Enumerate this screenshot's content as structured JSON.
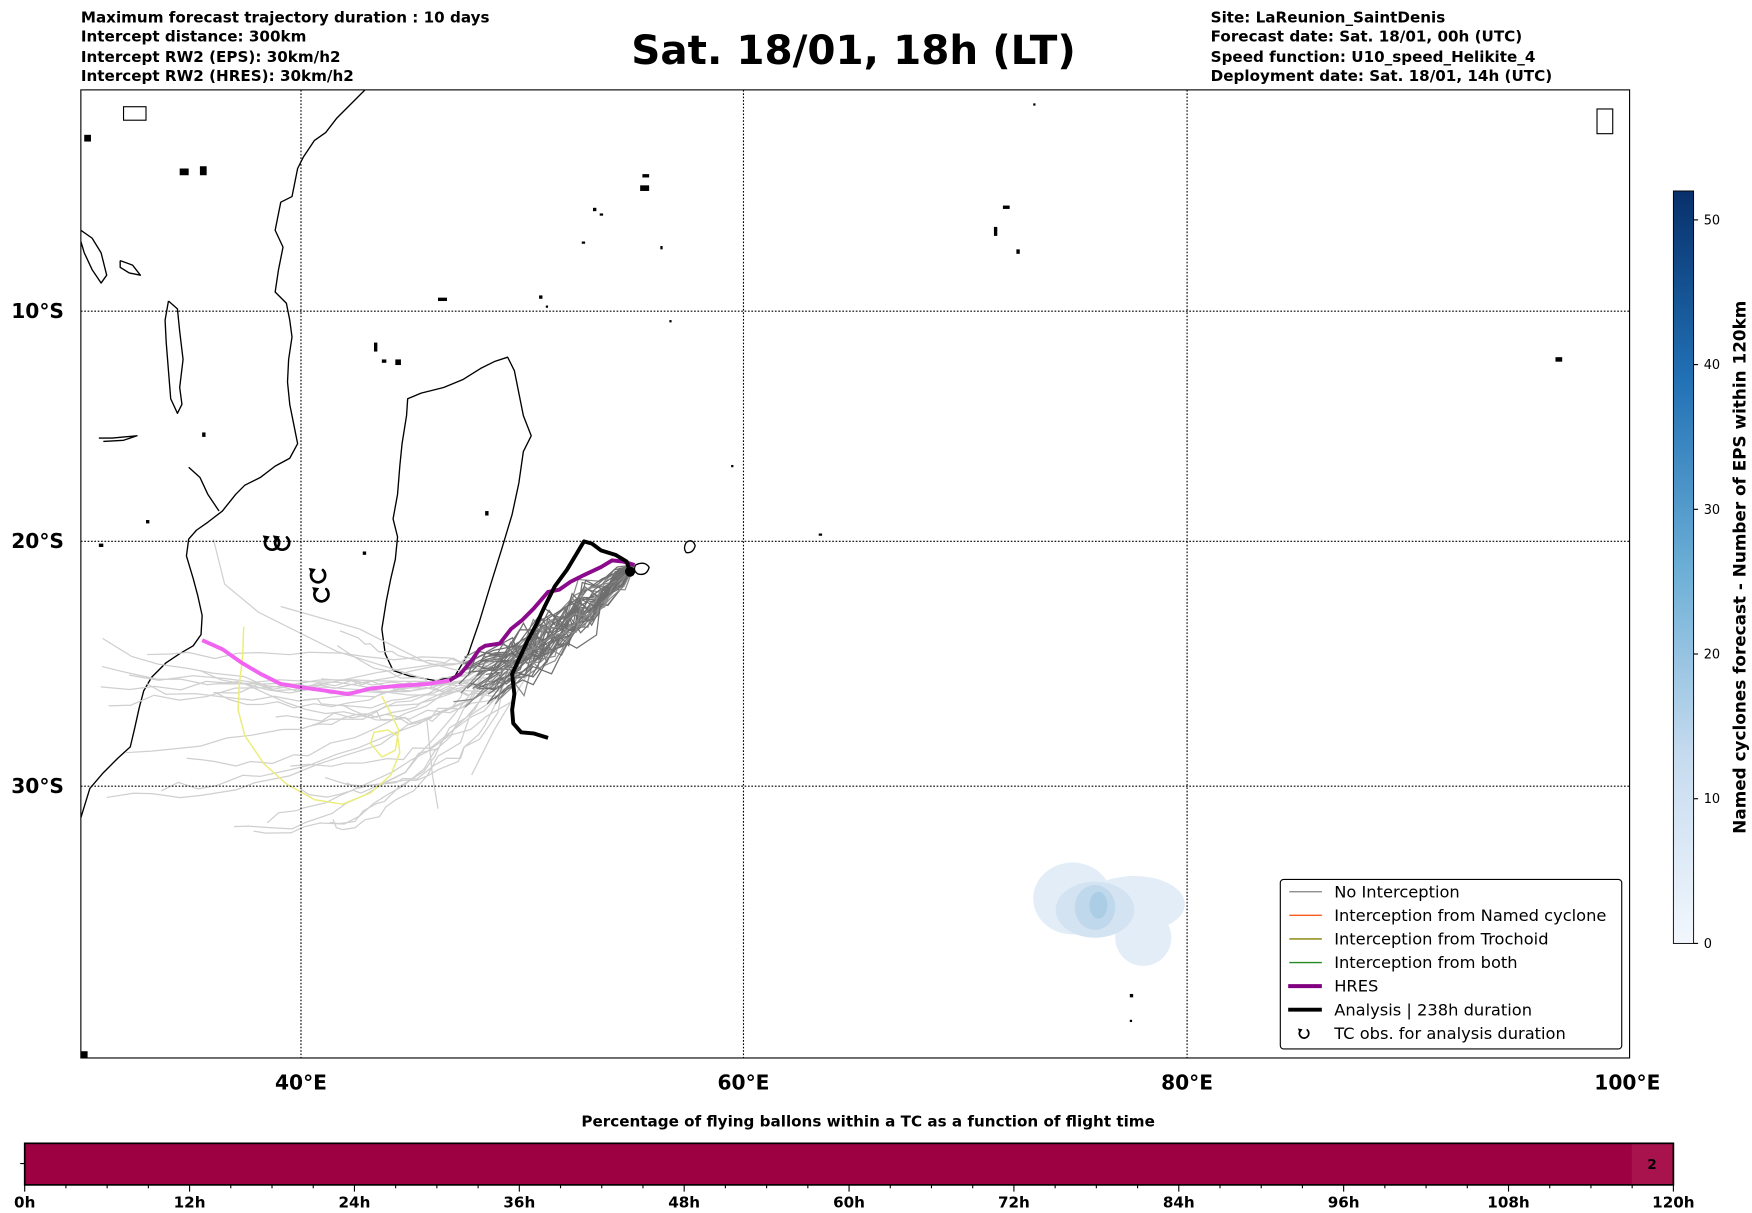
{
  "header": {
    "left": [
      "Maximum forecast trajectory duration : 10 days",
      "Intercept distance: 300km",
      "Intercept RW2 (EPS):  30km/h2",
      "Intercept RW2 (HRES): 30km/h2"
    ],
    "title": "Sat. 18/01, 18h (LT)",
    "right": [
      "Site: LaReunion_SaintDenis",
      "Forecast date: Sat. 18/01, 00h (UTC)",
      "Speed function: U10_speed_Helikite_4",
      "Deployment date: Sat. 18/01, 14h (UTC)"
    ]
  },
  "map": {
    "lat_labels": [
      "10°S",
      "20°S",
      "30°S"
    ],
    "lon_labels": [
      "40°E",
      "60°E",
      "80°E",
      "100°E"
    ]
  },
  "colorbar": {
    "label": "Named cyclones forecast - Number of EPS within 120km",
    "ticks": [
      "0",
      "10",
      "20",
      "30",
      "40",
      "50"
    ],
    "range": [
      0,
      52
    ]
  },
  "legend": {
    "items": [
      {
        "label": "No Interception",
        "color": "#808080"
      },
      {
        "label": "Interception from Named cyclone",
        "color": "#ff5a1e"
      },
      {
        "label": "Interception from Trochoid",
        "color": "#808000"
      },
      {
        "label": "Interception from both",
        "color": "#228b22"
      },
      {
        "label": "HRES",
        "color": "#800080"
      },
      {
        "label": "Analysis | 238h duration",
        "color": "#000000"
      },
      {
        "label": "TC obs. for analysis duration",
        "color": "#000000"
      }
    ]
  },
  "bottom": {
    "title": "Percentage of flying ballons within a TC as a function of flight time",
    "ticks": [
      "0h",
      "12h",
      "24h",
      "36h",
      "48h",
      "60h",
      "72h",
      "84h",
      "96h",
      "108h",
      "120h"
    ],
    "last_value": "2",
    "bar_color": "#9e0142"
  }
}
